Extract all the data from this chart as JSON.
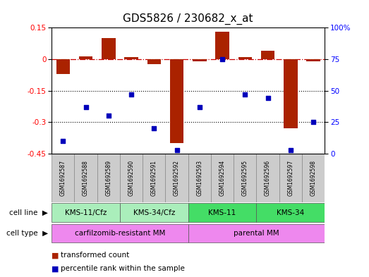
{
  "title": "GDS5826 / 230682_x_at",
  "samples": [
    "GSM1692587",
    "GSM1692588",
    "GSM1692589",
    "GSM1692590",
    "GSM1692591",
    "GSM1692592",
    "GSM1692593",
    "GSM1692594",
    "GSM1692595",
    "GSM1692596",
    "GSM1692597",
    "GSM1692598"
  ],
  "transformed_count": [
    -0.07,
    0.015,
    0.1,
    0.01,
    -0.025,
    -0.4,
    -0.01,
    0.13,
    0.01,
    0.04,
    -0.33,
    -0.01
  ],
  "percentile_rank": [
    10,
    37,
    30,
    47,
    20,
    3,
    37,
    75,
    47,
    44,
    3,
    25
  ],
  "cell_line_groups": [
    {
      "label": "KMS-11/Cfz",
      "start": 0,
      "end": 2,
      "color": "#AAEEBB"
    },
    {
      "label": "KMS-34/Cfz",
      "start": 3,
      "end": 5,
      "color": "#AAEEBB"
    },
    {
      "label": "KMS-11",
      "start": 6,
      "end": 8,
      "color": "#44DD66"
    },
    {
      "label": "KMS-34",
      "start": 9,
      "end": 11,
      "color": "#44DD66"
    }
  ],
  "cell_type_groups": [
    {
      "label": "carfilzomib-resistant MM",
      "start": 0,
      "end": 5,
      "color": "#EE88EE"
    },
    {
      "label": "parental MM",
      "start": 6,
      "end": 11,
      "color": "#EE88EE"
    }
  ],
  "bar_color": "#AA2200",
  "dot_color": "#0000BB",
  "ylim_left": [
    -0.45,
    0.15
  ],
  "ylim_right": [
    0,
    100
  ],
  "yticks_left": [
    0.15,
    0,
    -0.15,
    -0.3,
    -0.45
  ],
  "yticks_right": [
    100,
    75,
    50,
    25,
    0
  ],
  "hline_zero": 0,
  "hlines_dotted": [
    -0.15,
    -0.3
  ],
  "title_fontsize": 11,
  "label_fontsize": 7.5,
  "legend_items": [
    {
      "label": "transformed count",
      "color": "#AA2200"
    },
    {
      "label": "percentile rank within the sample",
      "color": "#0000BB"
    }
  ]
}
